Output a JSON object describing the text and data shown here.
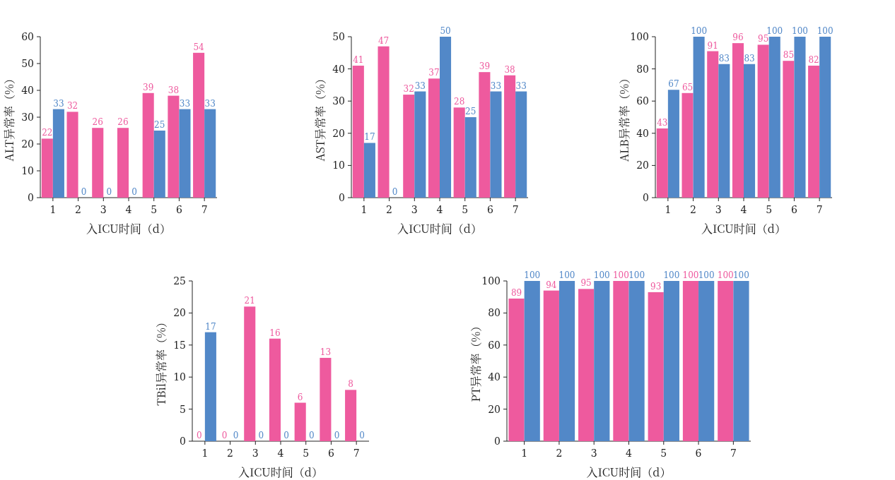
{
  "chart_data": [
    {
      "type": "bar",
      "ylabel": "ALT异常率（%）",
      "xlabel": "入ICU时间（d）",
      "categories": [
        "1",
        "2",
        "3",
        "4",
        "5",
        "6",
        "7"
      ],
      "series": [
        {
          "color": "#ee5a9e",
          "values": [
            22,
            32,
            26,
            26,
            39,
            38,
            54
          ]
        },
        {
          "color": "#5288c8",
          "values": [
            33,
            0,
            0,
            0,
            25,
            33,
            33
          ]
        }
      ],
      "ylim": [
        0,
        60
      ],
      "yticks": [
        0,
        10,
        20,
        30,
        40,
        50,
        60
      ],
      "data_labels": true
    },
    {
      "type": "bar",
      "ylabel": "AST异常率（%）",
      "xlabel": "入ICU时间（d）",
      "categories": [
        "1",
        "2",
        "3",
        "4",
        "5",
        "6",
        "7"
      ],
      "series": [
        {
          "color": "#ee5a9e",
          "values": [
            41,
            47,
            32,
            37,
            28,
            39,
            38
          ]
        },
        {
          "color": "#5288c8",
          "values": [
            17,
            0,
            33,
            50,
            25,
            33,
            33
          ]
        }
      ],
      "ylim": [
        0,
        50
      ],
      "yticks": [
        0,
        10,
        20,
        30,
        40,
        50
      ],
      "data_labels": true
    },
    {
      "type": "bar",
      "ylabel": "ALB异常率（%）",
      "xlabel": "入ICU时间（d）",
      "categories": [
        "1",
        "2",
        "3",
        "4",
        "5",
        "6",
        "7"
      ],
      "series": [
        {
          "color": "#ee5a9e",
          "values": [
            43,
            65,
            91,
            96,
            95,
            85,
            82
          ]
        },
        {
          "color": "#5288c8",
          "values": [
            67,
            100,
            83,
            83,
            100,
            100,
            100
          ]
        }
      ],
      "ylim": [
        0,
        100
      ],
      "yticks": [
        0,
        20,
        40,
        60,
        80,
        100
      ],
      "data_labels": true
    },
    {
      "type": "bar",
      "ylabel": "TBil异常率（%）",
      "xlabel": "入ICU时间（d）",
      "categories": [
        "1",
        "2",
        "3",
        "4",
        "5",
        "6",
        "7"
      ],
      "series": [
        {
          "color": "#ee5a9e",
          "values": [
            0,
            0,
            21,
            16,
            6,
            13,
            8
          ]
        },
        {
          "color": "#5288c8",
          "values": [
            17,
            0,
            0,
            0,
            0,
            0,
            0
          ]
        }
      ],
      "ylim": [
        0,
        25
      ],
      "yticks": [
        0,
        5,
        10,
        15,
        20,
        25
      ],
      "data_labels": true
    },
    {
      "type": "bar",
      "ylabel": "PT异常率（%）",
      "xlabel": "入ICU时间（d）",
      "categories": [
        "1",
        "2",
        "3",
        "4",
        "5",
        "6",
        "7"
      ],
      "series": [
        {
          "color": "#ee5a9e",
          "values": [
            89,
            94,
            95,
            100,
            93,
            100,
            100
          ]
        },
        {
          "color": "#5288c8",
          "values": [
            100,
            100,
            100,
            100,
            100,
            100,
            100
          ]
        }
      ],
      "ylim": [
        0,
        100
      ],
      "yticks": [
        0,
        20,
        40,
        60,
        80,
        100
      ],
      "data_labels": true
    }
  ]
}
